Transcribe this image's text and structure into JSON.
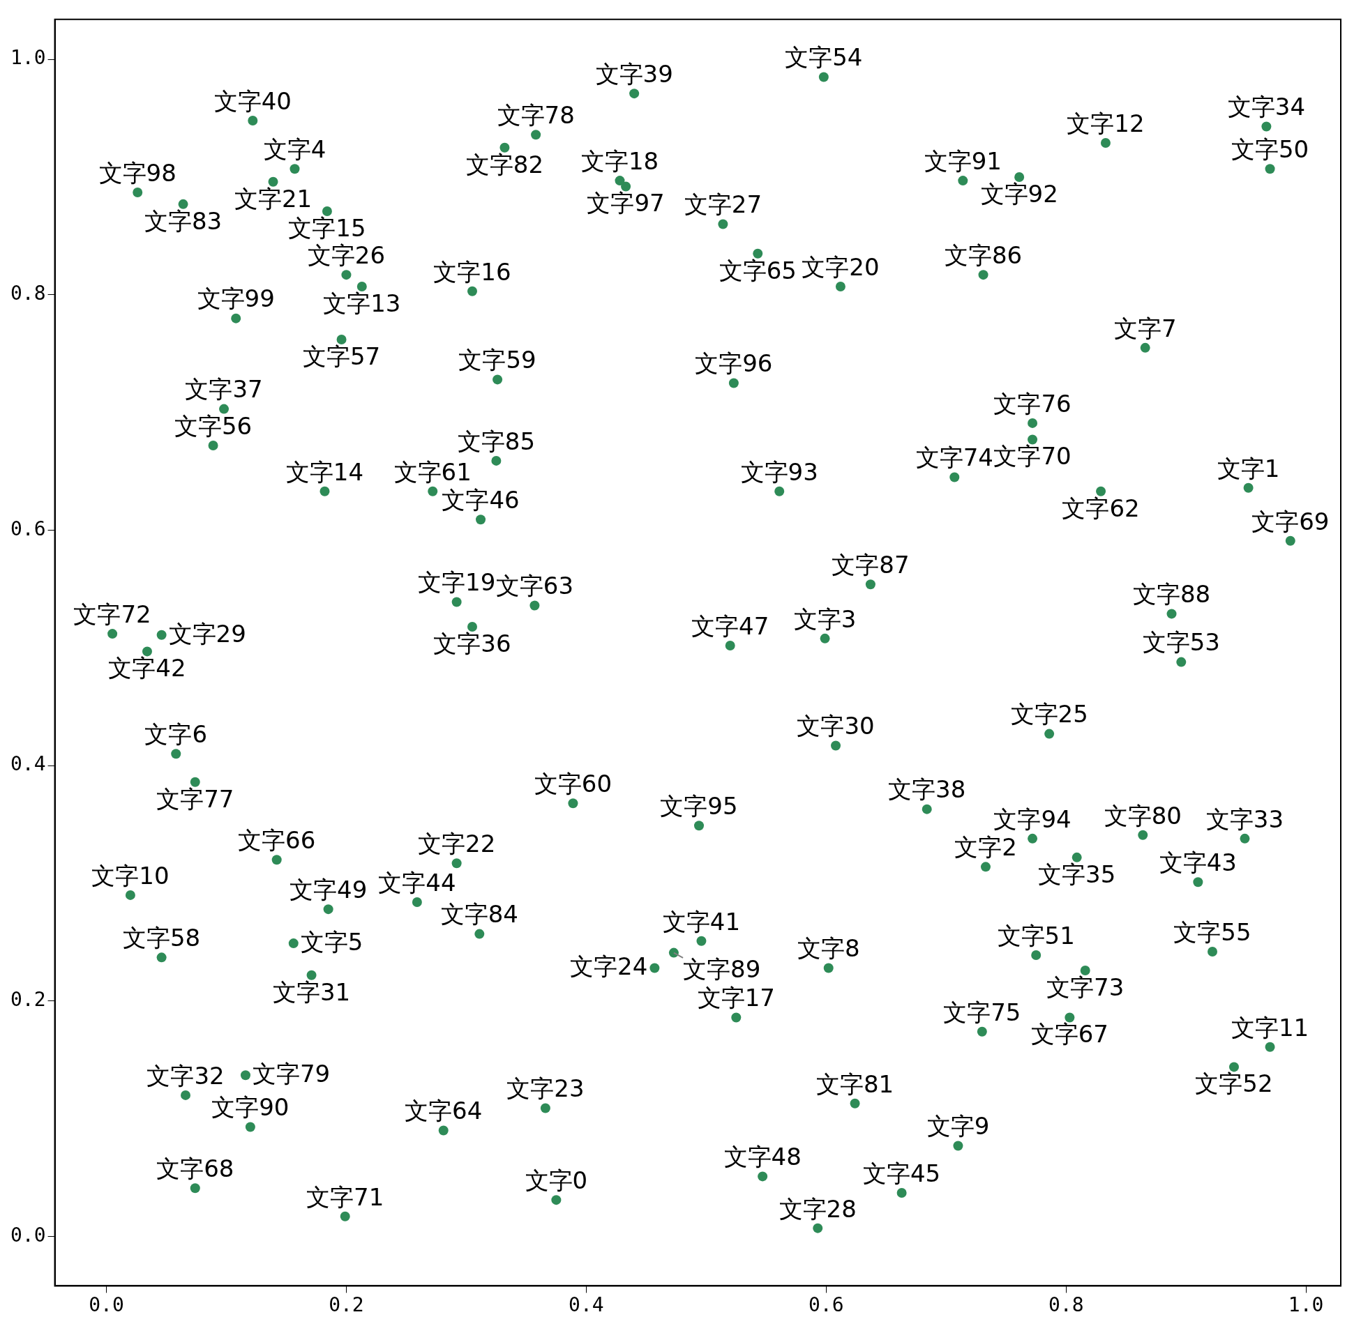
{
  "chart_data": {
    "type": "scatter",
    "color": "#2e8b57",
    "marker": "circle",
    "grid": false,
    "legend": false,
    "xlim": [
      -0.043,
      1.029
    ],
    "ylim": [
      -0.042,
      1.034
    ],
    "xticks": [
      {
        "value": 0,
        "label": "0.0"
      },
      {
        "value": 0.2,
        "label": "0.2"
      },
      {
        "value": 0.4,
        "label": "0.4"
      },
      {
        "value": 0.6,
        "label": "0.6"
      },
      {
        "value": 0.8,
        "label": "0.8"
      },
      {
        "value": 1,
        "label": "1.0"
      }
    ],
    "yticks": [
      {
        "value": 0,
        "label": "0.0"
      },
      {
        "value": 0.2,
        "label": "0.2"
      },
      {
        "value": 0.4,
        "label": "0.4"
      },
      {
        "value": 0.6,
        "label": "0.6"
      },
      {
        "value": 0.8,
        "label": "0.8"
      },
      {
        "value": 1,
        "label": "1.0"
      }
    ],
    "x": [
      0.598,
      0.44,
      0.122,
      0.358,
      0.332,
      0.967,
      0.833,
      0.97,
      0.139,
      0.157,
      0.026,
      0.064,
      0.184,
      0.433,
      0.428,
      0.714,
      0.761,
      0.514,
      0.543,
      0.731,
      0.612,
      0.213,
      0.2,
      0.305,
      0.108,
      0.866,
      0.196,
      0.326,
      0.523,
      0.098,
      0.772,
      0.772,
      0.089,
      0.325,
      0.707,
      0.952,
      0.182,
      0.272,
      0.561,
      0.829,
      0.312,
      0.987,
      0.637,
      0.292,
      0.357,
      0.888,
      0.305,
      0.599,
      0.005,
      0.046,
      0.034,
      0.52,
      0.896,
      0.608,
      0.786,
      0.058,
      0.074,
      0.389,
      0.494,
      0.684,
      0.772,
      0.864,
      0.949,
      0.142,
      0.292,
      0.809,
      0.733,
      0.02,
      0.91,
      0.185,
      0.259,
      0.311,
      0.496,
      0.156,
      0.473,
      0.775,
      0.922,
      0.046,
      0.457,
      0.602,
      0.816,
      0.171,
      0.803,
      0.525,
      0.73,
      0.97,
      0.94,
      0.066,
      0.116,
      0.366,
      0.624,
      0.12,
      0.281,
      0.71,
      0.547,
      0.663,
      0.375,
      0.074,
      0.199,
      0.593
    ],
    "values": [
      0.985,
      0.971,
      0.948,
      0.936,
      0.925,
      0.943,
      0.929,
      0.907,
      0.896,
      0.907,
      0.887,
      0.877,
      0.871,
      0.892,
      0.897,
      0.897,
      0.9,
      0.86,
      0.835,
      0.817,
      0.807,
      0.807,
      0.817,
      0.803,
      0.78,
      0.755,
      0.762,
      0.728,
      0.725,
      0.703,
      0.691,
      0.677,
      0.672,
      0.659,
      0.645,
      0.636,
      0.633,
      0.633,
      0.633,
      0.633,
      0.609,
      0.591,
      0.554,
      0.539,
      0.536,
      0.529,
      0.518,
      0.508,
      0.512,
      0.511,
      0.497,
      0.502,
      0.488,
      0.417,
      0.427,
      0.41,
      0.386,
      0.368,
      0.349,
      0.363,
      0.338,
      0.341,
      0.338,
      0.32,
      0.317,
      0.322,
      0.314,
      0.29,
      0.301,
      0.278,
      0.284,
      0.257,
      0.251,
      0.249,
      0.241,
      0.239,
      0.242,
      0.237,
      0.228,
      0.228,
      0.226,
      0.222,
      0.186,
      0.186,
      0.174,
      0.161,
      0.144,
      0.12,
      0.137,
      0.109,
      0.113,
      0.093,
      0.09,
      0.077,
      0.051,
      0.037,
      0.031,
      0.041,
      0.017,
      0.007
    ],
    "annotations": [
      {
        "text": "文字54",
        "x": 0.598,
        "y": 0.985
      },
      {
        "text": "文字39",
        "x": 0.44,
        "y": 0.971
      },
      {
        "text": "文字40",
        "x": 0.122,
        "y": 0.948
      },
      {
        "text": "文字78",
        "x": 0.358,
        "y": 0.936
      },
      {
        "text": "文字82",
        "x": 0.332,
        "y": 0.925
      },
      {
        "text": "文字34",
        "x": 0.967,
        "y": 0.943
      },
      {
        "text": "文字12",
        "x": 0.833,
        "y": 0.929
      },
      {
        "text": "文字50",
        "x": 0.97,
        "y": 0.907
      },
      {
        "text": "文字21",
        "x": 0.139,
        "y": 0.896
      },
      {
        "text": "文字4",
        "x": 0.157,
        "y": 0.907
      },
      {
        "text": "文字98",
        "x": 0.026,
        "y": 0.887
      },
      {
        "text": "文字83",
        "x": 0.064,
        "y": 0.877
      },
      {
        "text": "文字15",
        "x": 0.184,
        "y": 0.871
      },
      {
        "text": "文字97",
        "x": 0.433,
        "y": 0.892
      },
      {
        "text": "文字18",
        "x": 0.428,
        "y": 0.897
      },
      {
        "text": "文字91",
        "x": 0.714,
        "y": 0.897
      },
      {
        "text": "文字92",
        "x": 0.761,
        "y": 0.9
      },
      {
        "text": "文字27",
        "x": 0.514,
        "y": 0.86
      },
      {
        "text": "文字65",
        "x": 0.543,
        "y": 0.835
      },
      {
        "text": "文字86",
        "x": 0.731,
        "y": 0.817
      },
      {
        "text": "文字20",
        "x": 0.612,
        "y": 0.807
      },
      {
        "text": "文字13",
        "x": 0.213,
        "y": 0.807
      },
      {
        "text": "文字26",
        "x": 0.2,
        "y": 0.817
      },
      {
        "text": "文字16",
        "x": 0.305,
        "y": 0.803
      },
      {
        "text": "文字99",
        "x": 0.108,
        "y": 0.78
      },
      {
        "text": "文字7",
        "x": 0.866,
        "y": 0.755
      },
      {
        "text": "文字57",
        "x": 0.196,
        "y": 0.762
      },
      {
        "text": "文字59",
        "x": 0.326,
        "y": 0.728
      },
      {
        "text": "文字96",
        "x": 0.523,
        "y": 0.725
      },
      {
        "text": "文字37",
        "x": 0.098,
        "y": 0.703
      },
      {
        "text": "文字76",
        "x": 0.772,
        "y": 0.691
      },
      {
        "text": "文字70",
        "x": 0.772,
        "y": 0.677
      },
      {
        "text": "文字56",
        "x": 0.089,
        "y": 0.672
      },
      {
        "text": "文字85",
        "x": 0.325,
        "y": 0.659
      },
      {
        "text": "文字74",
        "x": 0.707,
        "y": 0.645
      },
      {
        "text": "文字1",
        "x": 0.952,
        "y": 0.636
      },
      {
        "text": "文字14",
        "x": 0.182,
        "y": 0.633
      },
      {
        "text": "文字61",
        "x": 0.272,
        "y": 0.633
      },
      {
        "text": "文字93",
        "x": 0.561,
        "y": 0.633
      },
      {
        "text": "文字62",
        "x": 0.829,
        "y": 0.633
      },
      {
        "text": "文字46",
        "x": 0.312,
        "y": 0.609
      },
      {
        "text": "文字69",
        "x": 0.987,
        "y": 0.591
      },
      {
        "text": "文字87",
        "x": 0.637,
        "y": 0.554
      },
      {
        "text": "文字19",
        "x": 0.292,
        "y": 0.539
      },
      {
        "text": "文字63",
        "x": 0.357,
        "y": 0.536
      },
      {
        "text": "文字88",
        "x": 0.888,
        "y": 0.529
      },
      {
        "text": "文字36",
        "x": 0.305,
        "y": 0.518
      },
      {
        "text": "文字3",
        "x": 0.599,
        "y": 0.508
      },
      {
        "text": "文字72",
        "x": 0.005,
        "y": 0.512
      },
      {
        "text": "文字29",
        "x": 0.046,
        "y": 0.511
      },
      {
        "text": "文字42",
        "x": 0.034,
        "y": 0.497
      },
      {
        "text": "文字47",
        "x": 0.52,
        "y": 0.502
      },
      {
        "text": "文字53",
        "x": 0.896,
        "y": 0.488
      },
      {
        "text": "文字30",
        "x": 0.608,
        "y": 0.417
      },
      {
        "text": "文字25",
        "x": 0.786,
        "y": 0.427
      },
      {
        "text": "文字6",
        "x": 0.058,
        "y": 0.41
      },
      {
        "text": "文字77",
        "x": 0.074,
        "y": 0.386
      },
      {
        "text": "文字60",
        "x": 0.389,
        "y": 0.368
      },
      {
        "text": "文字95",
        "x": 0.494,
        "y": 0.349
      },
      {
        "text": "文字38",
        "x": 0.684,
        "y": 0.363
      },
      {
        "text": "文字94",
        "x": 0.772,
        "y": 0.338
      },
      {
        "text": "文字80",
        "x": 0.864,
        "y": 0.341
      },
      {
        "text": "文字33",
        "x": 0.949,
        "y": 0.338
      },
      {
        "text": "文字66",
        "x": 0.142,
        "y": 0.32
      },
      {
        "text": "文字22",
        "x": 0.292,
        "y": 0.317
      },
      {
        "text": "文字35",
        "x": 0.809,
        "y": 0.322
      },
      {
        "text": "文字2",
        "x": 0.733,
        "y": 0.314
      },
      {
        "text": "文字10",
        "x": 0.02,
        "y": 0.29
      },
      {
        "text": "文字43",
        "x": 0.91,
        "y": 0.301
      },
      {
        "text": "文字49",
        "x": 0.185,
        "y": 0.278
      },
      {
        "text": "文字44",
        "x": 0.259,
        "y": 0.284
      },
      {
        "text": "文字84",
        "x": 0.311,
        "y": 0.257
      },
      {
        "text": "文字41",
        "x": 0.496,
        "y": 0.251
      },
      {
        "text": "文字5",
        "x": 0.156,
        "y": 0.249
      },
      {
        "text": "文字89",
        "x": 0.473,
        "y": 0.241
      },
      {
        "text": "文字51",
        "x": 0.775,
        "y": 0.239
      },
      {
        "text": "文字55",
        "x": 0.922,
        "y": 0.242
      },
      {
        "text": "文字58",
        "x": 0.046,
        "y": 0.237
      },
      {
        "text": "文字24",
        "x": 0.457,
        "y": 0.228
      },
      {
        "text": "文字8",
        "x": 0.602,
        "y": 0.228
      },
      {
        "text": "文字73",
        "x": 0.816,
        "y": 0.226
      },
      {
        "text": "文字31",
        "x": 0.171,
        "y": 0.222
      },
      {
        "text": "文字67",
        "x": 0.803,
        "y": 0.186
      },
      {
        "text": "文字17",
        "x": 0.525,
        "y": 0.186
      },
      {
        "text": "文字75",
        "x": 0.73,
        "y": 0.174
      },
      {
        "text": "文字11",
        "x": 0.97,
        "y": 0.161
      },
      {
        "text": "文字52",
        "x": 0.94,
        "y": 0.144
      },
      {
        "text": "文字32",
        "x": 0.066,
        "y": 0.12
      },
      {
        "text": "文字79",
        "x": 0.116,
        "y": 0.137
      },
      {
        "text": "文字23",
        "x": 0.366,
        "y": 0.109
      },
      {
        "text": "文字81",
        "x": 0.624,
        "y": 0.113
      },
      {
        "text": "文字90",
        "x": 0.12,
        "y": 0.093
      },
      {
        "text": "文字64",
        "x": 0.281,
        "y": 0.09
      },
      {
        "text": "文字9",
        "x": 0.71,
        "y": 0.077
      },
      {
        "text": "文字48",
        "x": 0.547,
        "y": 0.051
      },
      {
        "text": "文字45",
        "x": 0.663,
        "y": 0.037
      },
      {
        "text": "文字0",
        "x": 0.375,
        "y": 0.031
      },
      {
        "text": "文字68",
        "x": 0.074,
        "y": 0.041
      },
      {
        "text": "文字71",
        "x": 0.199,
        "y": 0.017
      },
      {
        "text": "文字28",
        "x": 0.593,
        "y": 0.007
      }
    ]
  }
}
